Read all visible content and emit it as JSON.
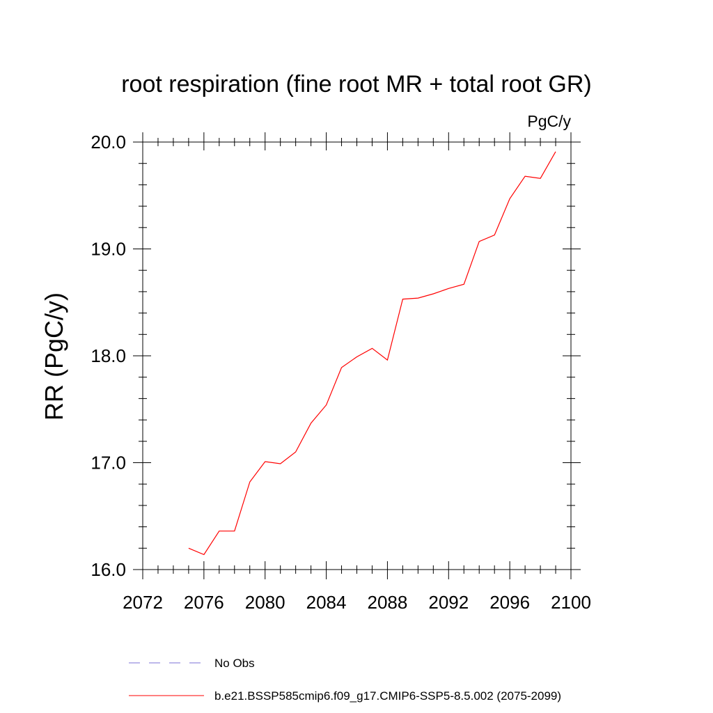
{
  "chart_data": {
    "type": "line",
    "title": "root respiration (fine root MR + total root GR)",
    "units": "PgC/y",
    "xlabel": "",
    "ylabel": "RR  (PgC/y)",
    "xlim": [
      2072,
      2100
    ],
    "ylim": [
      16.0,
      20.0
    ],
    "x_ticks": [
      2072,
      2076,
      2080,
      2084,
      2088,
      2092,
      2096,
      2100
    ],
    "x_tick_labels": [
      "2072",
      "2076",
      "2080",
      "2084",
      "2088",
      "2092",
      "2096",
      "2100"
    ],
    "y_ticks": [
      16.0,
      17.0,
      18.0,
      19.0,
      20.0
    ],
    "y_tick_labels": [
      "16.0",
      "17.0",
      "18.0",
      "19.0",
      "20.0"
    ],
    "grid": false,
    "legend_position": "bottom",
    "series": [
      {
        "name": "b.e21.BSSP585cmip6.f09_g17.CMIP6-SSP5-8.5.002 (2075-2099)",
        "color": "#ff0000",
        "dash": "solid",
        "x": [
          2075,
          2076,
          2077,
          2078,
          2079,
          2080,
          2081,
          2082,
          2083,
          2084,
          2085,
          2086,
          2087,
          2088,
          2089,
          2090,
          2091,
          2092,
          2093,
          2094,
          2095,
          2096,
          2097,
          2098,
          2099
        ],
        "values": [
          16.2,
          16.14,
          16.36,
          16.36,
          16.82,
          17.01,
          16.99,
          17.1,
          17.37,
          17.54,
          17.89,
          17.99,
          18.07,
          17.96,
          18.53,
          18.54,
          18.58,
          18.63,
          18.67,
          19.07,
          19.13,
          19.47,
          19.68,
          19.66,
          19.91
        ]
      },
      {
        "name": "No Obs",
        "color": "#7b6fd6",
        "dash": "dashed",
        "x": [],
        "values": []
      }
    ]
  }
}
